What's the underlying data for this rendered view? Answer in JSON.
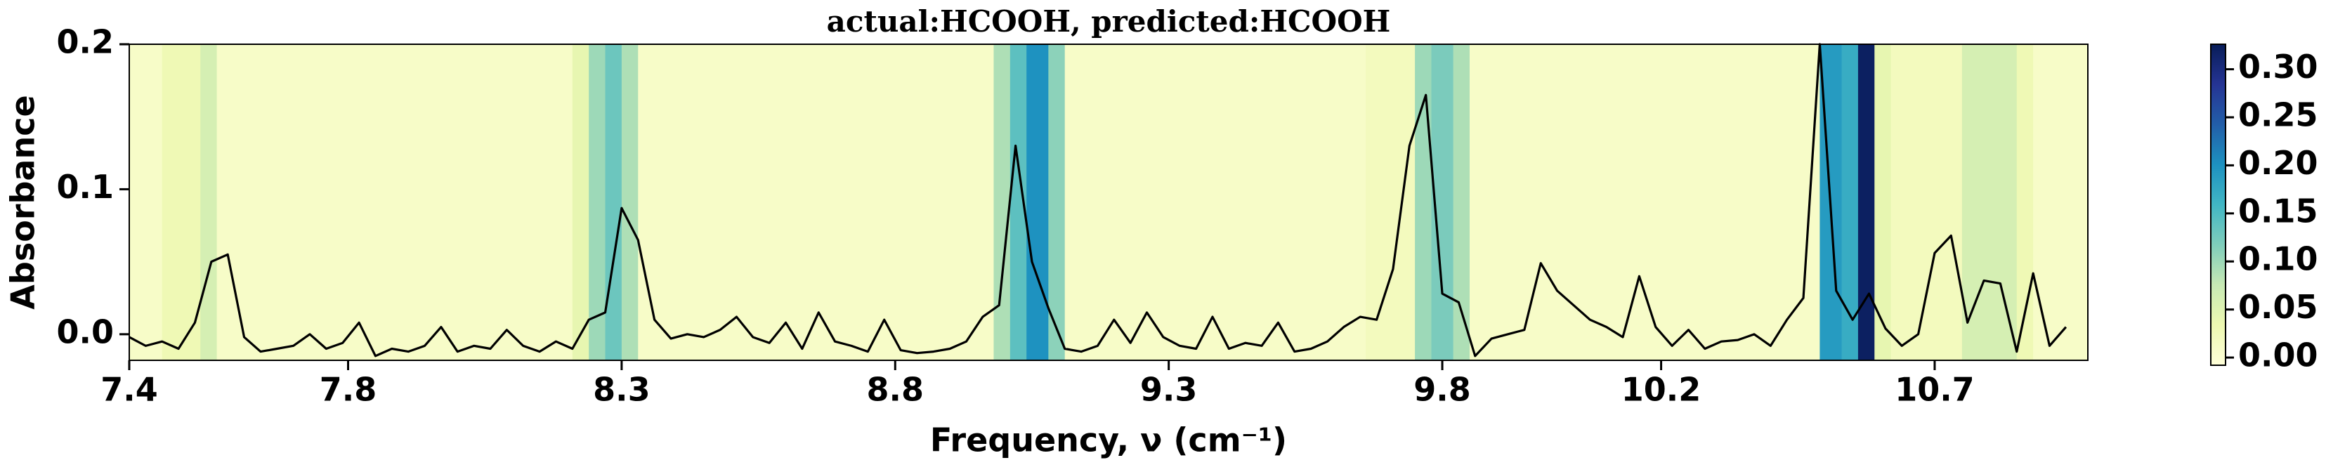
{
  "chart_data": {
    "type": "line",
    "title": "actual:HCOOH, predicted:HCOOH",
    "xlabel": "Frequency, ν (cm⁻¹)",
    "ylabel": "Absorbance",
    "color": "#000000",
    "x": [
      7.4,
      7.43,
      7.46,
      7.49,
      7.52,
      7.55,
      7.58,
      7.61,
      7.64,
      7.67,
      7.7,
      7.73,
      7.76,
      7.79,
      7.82,
      7.85,
      7.88,
      7.91,
      7.94,
      7.97,
      8,
      8.03,
      8.06,
      8.09,
      8.12,
      8.15,
      8.18,
      8.21,
      8.24,
      8.27,
      8.3,
      8.33,
      8.36,
      8.39,
      8.42,
      8.45,
      8.48,
      8.51,
      8.54,
      8.57,
      8.6,
      8.63,
      8.66,
      8.69,
      8.72,
      8.75,
      8.78,
      8.81,
      8.84,
      8.87,
      8.9,
      8.93,
      8.96,
      8.99,
      9.02,
      9.05,
      9.08,
      9.11,
      9.14,
      9.17,
      9.2,
      9.23,
      9.26,
      9.29,
      9.32,
      9.35,
      9.38,
      9.41,
      9.44,
      9.47,
      9.5,
      9.53,
      9.56,
      9.59,
      9.62,
      9.65,
      9.68,
      9.71,
      9.74,
      9.77,
      9.8,
      9.83,
      9.86,
      9.89,
      9.92,
      9.95,
      9.98,
      10.01,
      10.04,
      10.07,
      10.1,
      10.13,
      10.16,
      10.19,
      10.22,
      10.25,
      10.28,
      10.31,
      10.34,
      10.37,
      10.4,
      10.43,
      10.46,
      10.49,
      10.52,
      10.55,
      10.58,
      10.61,
      10.64,
      10.67,
      10.7,
      10.73,
      10.76,
      10.79,
      10.82,
      10.85,
      10.88,
      10.91,
      10.94
    ],
    "values": [
      -0.002,
      -0.008,
      -0.005,
      -0.01,
      0.008,
      0.05,
      0.055,
      -0.002,
      -0.012,
      -0.01,
      -0.008,
      0,
      -0.01,
      -0.006,
      0.008,
      -0.015,
      -0.01,
      -0.012,
      -0.008,
      0.005,
      -0.012,
      -0.008,
      -0.01,
      0.003,
      -0.008,
      -0.012,
      -0.005,
      -0.01,
      0.01,
      0.015,
      0.087,
      0.065,
      0.01,
      -0.003,
      0,
      -0.002,
      0.003,
      0.012,
      -0.002,
      -0.006,
      0.008,
      -0.01,
      0.015,
      -0.005,
      -0.008,
      -0.012,
      0.01,
      -0.011,
      -0.013,
      -0.012,
      -0.01,
      -0.005,
      0.012,
      0.02,
      0.13,
      0.05,
      0.018,
      -0.01,
      -0.012,
      -0.008,
      0.01,
      -0.006,
      0.015,
      -0.002,
      -0.008,
      -0.01,
      0.012,
      -0.01,
      -0.006,
      -0.008,
      0.008,
      -0.012,
      -0.01,
      -0.005,
      0.005,
      0.012,
      0.01,
      0.045,
      0.13,
      0.165,
      0.028,
      0.022,
      -0.015,
      -0.003,
      0,
      0.003,
      0.049,
      0.03,
      0.02,
      0.01,
      0.005,
      -0.002,
      0.04,
      0.005,
      -0.008,
      0.003,
      -0.01,
      -0.005,
      -0.004,
      0,
      -0.008,
      0.01,
      0.025,
      0.2,
      0.03,
      0.01,
      0.028,
      0.004,
      -0.008,
      0,
      0.056,
      0.068,
      0.008,
      0.037,
      0.035,
      -0.012,
      0.042,
      -0.008,
      0.005
    ],
    "xlim": [
      7.4,
      10.98
    ],
    "ylim": [
      -0.018,
      0.2
    ],
    "xticks": [
      7.4,
      7.8,
      8.3,
      8.8,
      9.3,
      9.8,
      10.2,
      10.7
    ],
    "yticks": [
      {
        "value": 0,
        "label": "0.0"
      },
      0.1,
      0.2
    ],
    "background": {
      "colormap": "YlGnBu",
      "bins": [
        7.4,
        7.46,
        7.53,
        7.56,
        8.21,
        8.24,
        8.27,
        8.3,
        8.33,
        8.98,
        9.01,
        9.04,
        9.08,
        9.11,
        9.66,
        9.75,
        9.78,
        9.82,
        9.85,
        10.49,
        10.53,
        10.56,
        10.59,
        10.62,
        10.75,
        10.85,
        10.88,
        10.98
      ],
      "values": [
        0.01,
        0.03,
        0.06,
        0.01,
        0.04,
        0.1,
        0.13,
        0.09,
        0.01,
        0.09,
        0.14,
        0.2,
        0.11,
        0.01,
        0.02,
        0.1,
        0.12,
        0.09,
        0.01,
        0.19,
        0.17,
        0.32,
        0.04,
        0.02,
        0.06,
        0.03,
        0.01
      ],
      "clim": [
        -0.008,
        0.326
      ],
      "ticks": [
        {
          "value": 0,
          "label": "0.00"
        },
        {
          "value": 0.05,
          "label": "0.05"
        },
        {
          "value": 0.1,
          "label": "0.10"
        },
        {
          "value": 0.15,
          "label": "0.15"
        },
        {
          "value": 0.2,
          "label": "0.20"
        },
        {
          "value": 0.25,
          "label": "0.25"
        },
        {
          "value": 0.3,
          "label": "0.30"
        }
      ]
    }
  }
}
